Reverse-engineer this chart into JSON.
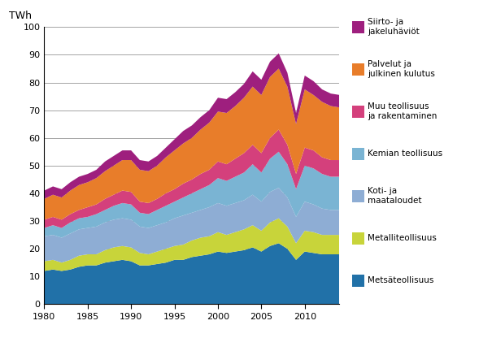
{
  "years": [
    1980,
    1981,
    1982,
    1983,
    1984,
    1985,
    1986,
    1987,
    1988,
    1989,
    1990,
    1991,
    1992,
    1993,
    1994,
    1995,
    1996,
    1997,
    1998,
    1999,
    2000,
    2001,
    2002,
    2003,
    2004,
    2005,
    2006,
    2007,
    2008,
    2009,
    2010,
    2011,
    2012,
    2013,
    2014
  ],
  "series": {
    "Metsäteollisuus": [
      12,
      12.5,
      12,
      12.5,
      13.5,
      14,
      14,
      15,
      15.5,
      16,
      15.5,
      14,
      14,
      14.5,
      15,
      16,
      16,
      17,
      17.5,
      18,
      19,
      18.5,
      19,
      19.5,
      20.5,
      19,
      21,
      22,
      20,
      16,
      19,
      18.5,
      18,
      18,
      18
    ],
    "Metalliteollisuus": [
      3.5,
      3.5,
      3,
      3.5,
      4,
      4,
      4,
      4.5,
      5,
      5,
      5,
      4.5,
      4,
      4.5,
      5,
      5,
      5.5,
      6,
      6.5,
      6.5,
      7,
      6.5,
      7,
      7.5,
      8,
      7.5,
      8.5,
      9,
      8,
      6,
      7.5,
      7.5,
      7,
      7,
      7
    ],
    "Koti- ja maataloudet": [
      9,
      9,
      9,
      9.5,
      9.5,
      9.5,
      10,
      10,
      10,
      10,
      10,
      9.5,
      9.5,
      9.5,
      9.5,
      10,
      10.5,
      10,
      10,
      10.5,
      10.5,
      10.5,
      10.5,
      10.5,
      11,
      10.5,
      11,
      11,
      10.5,
      9.5,
      10.5,
      10,
      9.5,
      9,
      9
    ],
    "Kemian teollisuus": [
      3,
      3.5,
      3.5,
      4,
      4,
      4,
      4.5,
      4.5,
      5,
      5.5,
      5.5,
      5,
      5,
      5.5,
      6,
      6,
      6.5,
      7,
      7.5,
      8,
      9,
      9,
      9.5,
      10,
      11,
      10.5,
      12,
      13,
      12,
      10,
      13,
      13,
      12.5,
      12,
      12
    ],
    "Muu teollisuus ja rakentaminen": [
      3,
      3,
      3,
      3,
      3,
      3.5,
      3.5,
      4,
      4,
      4.5,
      4.5,
      4,
      4,
      4,
      4.5,
      4.5,
      5,
      5,
      5.5,
      5.5,
      6,
      6,
      6.5,
      7,
      7,
      7,
      7.5,
      8,
      7,
      5.5,
      6.5,
      6.5,
      6,
      6,
      6
    ],
    "Palvelut ja julkinen kulutus": [
      7.5,
      8,
      8,
      8.5,
      9,
      9,
      9.5,
      10,
      10.5,
      11,
      11.5,
      11.5,
      11.5,
      12,
      13,
      14,
      14.5,
      15,
      16,
      17,
      18,
      18.5,
      19,
      20,
      21,
      21,
      22,
      22,
      21,
      18,
      21,
      20,
      20,
      19.5,
      19
    ],
    "Siirto- ja jakeluhäviöt": [
      3,
      3,
      3,
      3,
      3,
      3,
      3,
      3.5,
      3.5,
      3.5,
      3.5,
      3.5,
      3.5,
      3.5,
      3.5,
      4,
      4.5,
      4.5,
      4.5,
      4.5,
      5,
      5,
      5,
      5,
      5.5,
      5.5,
      5.5,
      5.5,
      5,
      4,
      5,
      5,
      4.5,
      4.5,
      4.5
    ]
  },
  "colors": {
    "Metsäteollisuus": "#2171a8",
    "Metalliteollisuus": "#c8d43a",
    "Koti- ja maataloudet": "#8eadd4",
    "Kemian teollisuus": "#7ab4d3",
    "Muu teollisuus ja rakentaminen": "#d4407c",
    "Palvelut ja julkinen kulutus": "#e87d2a",
    "Siirto- ja jakeluhäviöt": "#9e1f7e"
  },
  "ylabel": "TWh",
  "ylim": [
    0,
    100
  ],
  "yticks": [
    0,
    10,
    20,
    30,
    40,
    50,
    60,
    70,
    80,
    90,
    100
  ],
  "xticks": [
    1980,
    1985,
    1990,
    1995,
    2000,
    2005,
    2010
  ],
  "legend_order": [
    "Siirto- ja jakeluhäviöt",
    "Palvelut ja julkinen kulutus",
    "Muu teollisuus ja rakentaminen",
    "Kemian teollisuus",
    "Koti- ja maataloudet",
    "Metalliteollisuus",
    "Metsäteollisuus"
  ],
  "legend_labels_wrapped": {
    "Siirto- ja jakeluhäviöt": "Siirto- ja\njakeluhäviöt",
    "Palvelut ja julkinen kulutus": "Palvelut ja\njulkinen kulutus",
    "Muu teollisuus ja rakentaminen": "Muu teollisuus\nja rakentaminen",
    "Kemian teollisuus": "Kemian teollisuus",
    "Koti- ja maataloudet": "Koti- ja\nmaataloudet",
    "Metalliteollisuus": "Metalliteollisuus",
    "Metsäteollisuus": "Metsäteollisuus"
  }
}
